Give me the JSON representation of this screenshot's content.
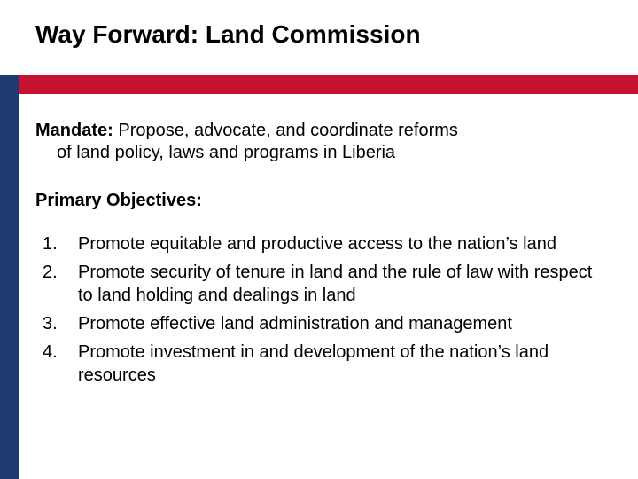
{
  "title": "Way Forward:  Land Commission",
  "title_fontsize": 28,
  "title_color": "#000000",
  "accent_red": "#c41230",
  "accent_navy": "#1f3a6e",
  "body_color": "#000000",
  "body_fontsize": 20,
  "mandate_label": "Mandate:",
  "mandate_line1": "  Propose, advocate, and coordinate reforms",
  "mandate_line2": "of land policy, laws and programs in Liberia",
  "objectives_heading": "Primary Objectives:",
  "objectives": [
    "Promote equitable and productive access to the nation’s land",
    "Promote security of tenure in land and the rule of law with respect to land holding and dealings in land",
    "Promote effective land administration and management",
    "Promote investment in and development of the nation’s land resources"
  ]
}
